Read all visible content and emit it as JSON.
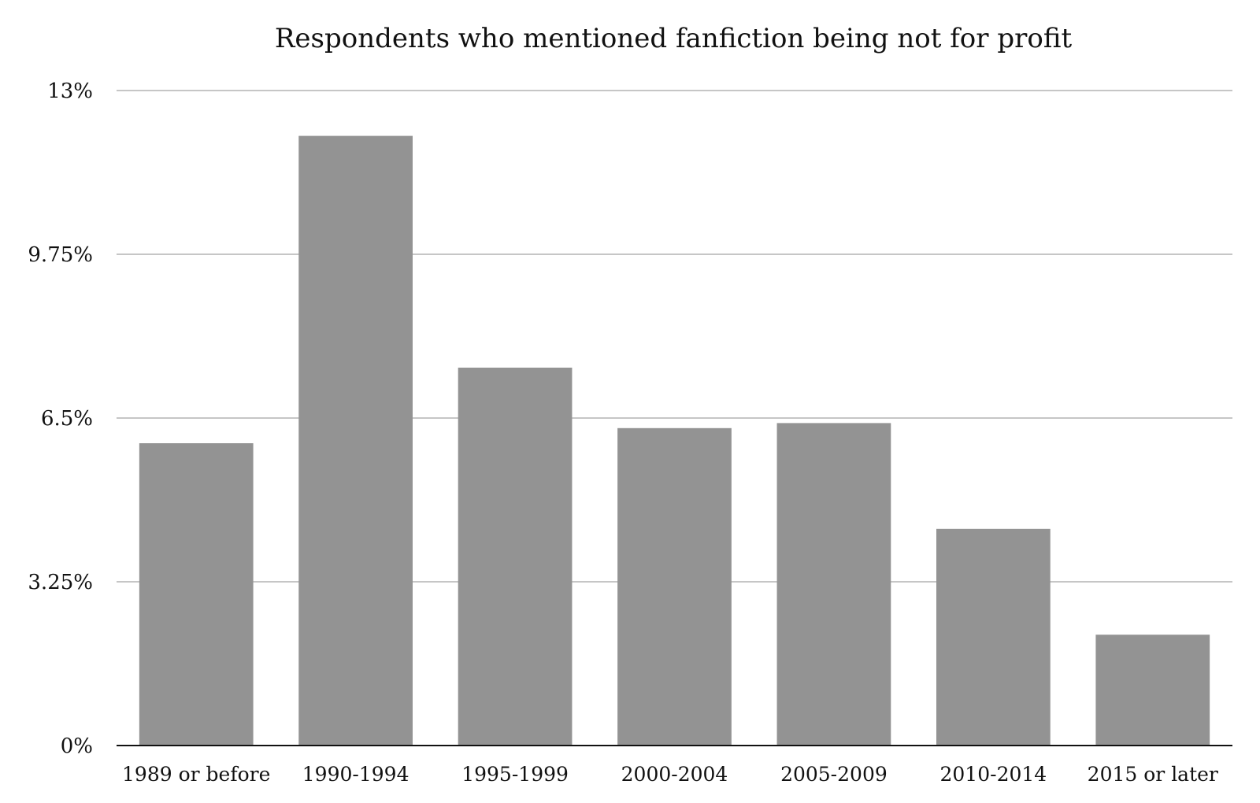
{
  "chart_data": {
    "type": "bar",
    "title": "Respondents who mentioned fanfiction being not for profit",
    "xlabel": "",
    "ylabel": "",
    "categories": [
      "1989 or before",
      "1990-1994",
      "1995-1999",
      "2000-2004",
      "2005-2009",
      "2010-2014",
      "2015 or later"
    ],
    "values": [
      6.0,
      12.1,
      7.5,
      6.3,
      6.4,
      4.3,
      2.2
    ],
    "ylim": [
      0,
      13
    ],
    "yticks": [
      0,
      3.25,
      6.5,
      9.75,
      13
    ],
    "ytick_labels": [
      "0%",
      "3.25%",
      "6.5%",
      "9.75%",
      "13%"
    ],
    "grid": true,
    "legend": "none",
    "colors": {
      "bar": "#939393",
      "grid": "#b3b3b3",
      "axis": "#111111",
      "text": "#111111"
    }
  }
}
